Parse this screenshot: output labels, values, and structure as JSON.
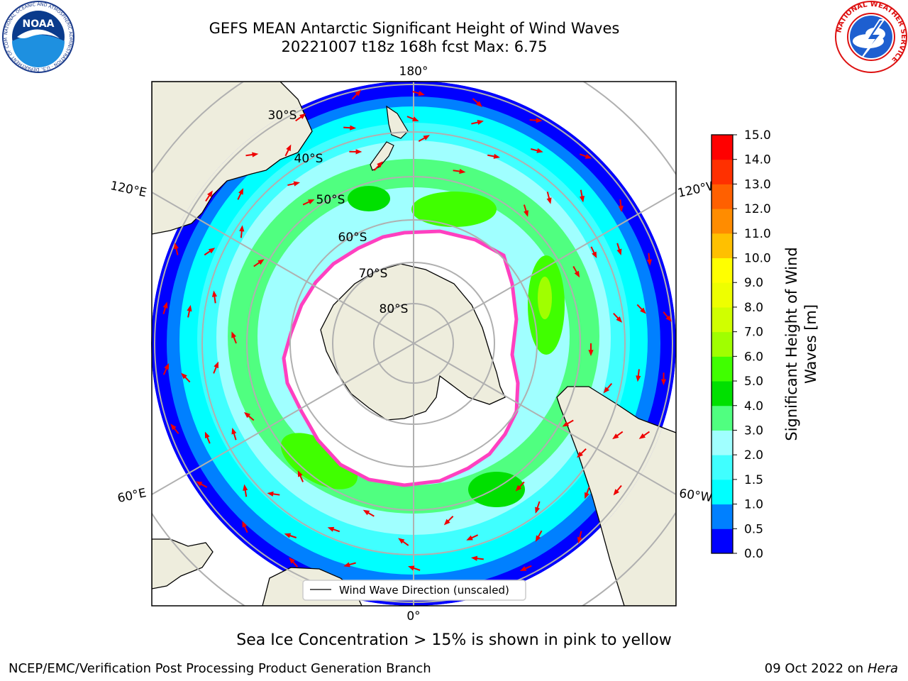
{
  "title": {
    "line1": "GEFS MEAN Antarctic Significant Height of Wind Waves",
    "line2": "20221007 t18z 168h fcst   Max: 6.75"
  },
  "map": {
    "longitude_labels": {
      "top": "180°",
      "bottom": "0°",
      "upper_left": "120°E",
      "upper_right": "120°W",
      "lower_left": "60°E",
      "lower_right": "60°W"
    },
    "latitude_labels": [
      "30°S",
      "40°S",
      "50°S",
      "60°S",
      "70°S",
      "80°S"
    ],
    "legend_label": "Wind Wave Direction (unscaled)",
    "land_color": "#eeeddd",
    "arrow_color": "#ee0000",
    "grid_color": "#b0b0b0"
  },
  "colorbar": {
    "label": "Significant Height of Wind Waves [m]",
    "ticks": [
      "0.0",
      "0.5",
      "1.0",
      "1.5",
      "2.0",
      "3.0",
      "4.0",
      "5.0",
      "6.0",
      "7.0",
      "8.0",
      "9.0",
      "10.0",
      "11.0",
      "12.0",
      "13.0",
      "14.0",
      "15.0"
    ],
    "colors": [
      "#0000ff",
      "#0080ff",
      "#00ffff",
      "#40ffff",
      "#a0ffff",
      "#50ff80",
      "#00e000",
      "#40ff00",
      "#a0ff00",
      "#d0ff00",
      "#eeff00",
      "#ffff00",
      "#ffc000",
      "#ff8c00",
      "#ff6000",
      "#ff3000",
      "#ff0000"
    ]
  },
  "chart_data": {
    "type": "heatmap",
    "title": "GEFS MEAN Antarctic Significant Height of Wind Waves",
    "subtitle": "20221007 t18z 168h fcst   Max: 6.75",
    "colorbar_label": "Significant Height of Wind Waves [m]",
    "colorbar_range": [
      0.0,
      15.0
    ],
    "max_value": 6.75,
    "projection": "south polar stereographic",
    "legend": "Wind Wave Direction (unscaled)"
  },
  "footer": {
    "ice_note": "Sea Ice Concentration > 15% is shown in pink to yellow",
    "credit": "NCEP/EMC/Verification Post Processing Product Generation Branch",
    "stamp_prefix": "09 Oct 2022 on ",
    "stamp_machine": "Hera"
  },
  "logos": {
    "noaa": "NOAA",
    "noaa_ring": "NATIONAL OCEANIC AND ATMOSPHERIC ADMINISTRATION · U.S. DEPARTMENT OF COMMERCE",
    "nws_ring": "NATIONAL WEATHER SERVICE"
  }
}
